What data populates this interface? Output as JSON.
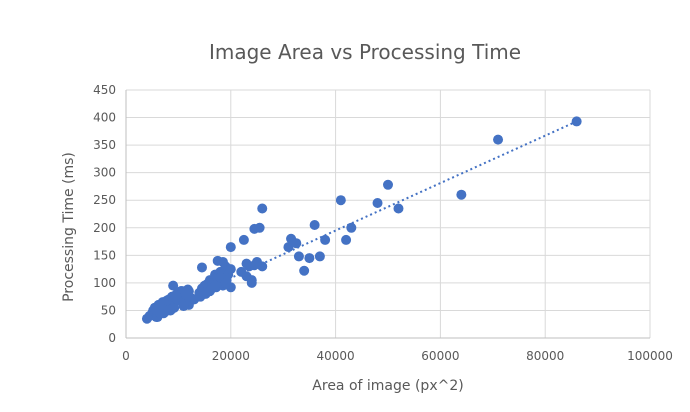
{
  "chart_data": {
    "type": "scatter",
    "title": "Image Area vs Processing Time",
    "xlabel": "Area of image (px^2)",
    "ylabel": "Processing Time (ms)",
    "xlim": [
      0,
      100000
    ],
    "ylim": [
      0,
      450
    ],
    "x_ticks": [
      0,
      20000,
      40000,
      60000,
      80000,
      100000
    ],
    "y_ticks": [
      0,
      50,
      100,
      150,
      200,
      250,
      300,
      350,
      400,
      450
    ],
    "grid": true,
    "legend": "none",
    "point_color": "#4472c4",
    "trendline": {
      "type": "linear",
      "from": [
        4000,
        40
      ],
      "to": [
        86000,
        393
      ]
    },
    "series": [
      {
        "x": [
          4000,
          4500,
          5000,
          5200,
          5500,
          5800,
          6000,
          6200,
          6500,
          6800,
          7000,
          7200,
          7500,
          7800,
          8000,
          8200,
          8500,
          8800,
          9000,
          9200,
          9500,
          9800,
          10000,
          10200,
          10500,
          10800,
          11000,
          11500,
          12000,
          12000,
          6000,
          7000,
          8000,
          9000,
          10000,
          11000,
          12000,
          6500,
          7500,
          8500,
          9500,
          10500,
          11500,
          5500,
          6800,
          7800,
          8800,
          9800,
          10800,
          11800,
          9000,
          9500,
          13000,
          14000,
          14500,
          15000,
          15500,
          16000,
          16500,
          17000,
          17500,
          18000,
          18500,
          19000,
          19500,
          20000,
          14200,
          15200,
          16200,
          17200,
          18200,
          19200,
          16000,
          17000,
          18000,
          19000,
          20000,
          17500,
          18500,
          14500,
          22000,
          23000,
          24000,
          25000,
          26000,
          22500,
          24500,
          25500,
          26000,
          23000,
          23500,
          24000,
          24500,
          25000,
          20000,
          31000,
          31500,
          32500,
          33000,
          34000,
          35000,
          36000,
          37000,
          38000,
          41000,
          42000,
          43000,
          48000,
          50000,
          52000,
          64000,
          71000,
          86000
        ],
        "y": [
          35,
          40,
          45,
          50,
          55,
          38,
          42,
          60,
          48,
          52,
          65,
          45,
          55,
          62,
          58,
          70,
          50,
          72,
          66,
          55,
          68,
          80,
          75,
          70,
          85,
          78,
          80,
          72,
          85,
          60,
          38,
          55,
          50,
          62,
          68,
          58,
          75,
          45,
          65,
          70,
          72,
          85,
          78,
          52,
          60,
          68,
          75,
          80,
          85,
          88,
          95,
          78,
          70,
          82,
          90,
          95,
          98,
          105,
          100,
          115,
          110,
          120,
          95,
          130,
          115,
          125,
          75,
          80,
          88,
          92,
          100,
          105,
          85,
          95,
          110,
          100,
          92,
          140,
          138,
          128,
          120,
          135,
          100,
          135,
          130,
          178,
          198,
          200,
          235,
          112,
          130,
          105,
          132,
          138,
          165,
          165,
          180,
          172,
          148,
          122,
          145,
          205,
          148,
          178,
          250,
          178,
          200,
          245,
          278,
          235,
          260,
          360,
          393
        ]
      }
    ]
  }
}
